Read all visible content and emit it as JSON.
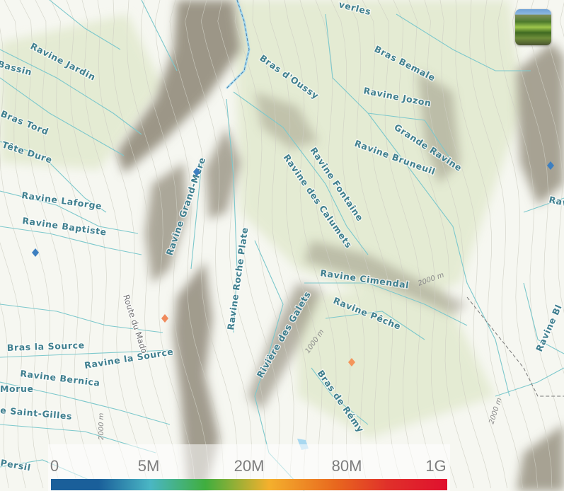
{
  "map": {
    "water_labels": [
      "Ravine Jardin",
      "Bassin",
      "Bras Tord",
      "Tête Dure",
      "Ravine Laforge",
      "Ravine Baptiste",
      "Ravine Grand-Mère",
      "Ravine Roche Plate",
      "Bras la Source",
      "Ravine la Source",
      "Ravine Bernica",
      "Morue",
      "e Saint-Gilles",
      "Persil",
      "Bras d'Oussy",
      "verles",
      "Bras Bemale",
      "Ravine Jozon",
      "Grande Ravine",
      "Ravine Bruneuil",
      "Ravine Fontaine",
      "Ravine des Calumets",
      "Ravine Cimendal",
      "Ravine Pêche",
      "Rivière des Galets",
      "Bras de Rémy",
      "Ravine Bl",
      "Rav"
    ],
    "road_labels": [
      "Route du Mado"
    ],
    "elevation_labels": [
      "2000 m",
      "1000 m",
      "2000 m",
      "2000 m"
    ],
    "markers": [
      {
        "type": "diamond",
        "color": "#3d7fc0"
      },
      {
        "type": "diamond",
        "color": "#3d7fc0"
      },
      {
        "type": "diamond",
        "color": "#3d7fc0"
      },
      {
        "type": "diamond",
        "color": "#f08a5c"
      },
      {
        "type": "diamond",
        "color": "#f4955a"
      }
    ],
    "colors": {
      "river": "#7cc8cc",
      "water_label": "#3f7f8f",
      "terrain_shadow": "#8c8574",
      "vegetation": "#e4ebd2"
    }
  },
  "basemap_thumbnail": {
    "icon": "basemap-thumbnail-icon"
  },
  "legend": {
    "ticks": [
      "0",
      "5M",
      "20M",
      "80M",
      "1G"
    ],
    "gradient_colors": [
      "#1a5f9a",
      "#4ab6c4",
      "#40ae3e",
      "#f4b02d",
      "#e8671e",
      "#e0102e"
    ]
  }
}
